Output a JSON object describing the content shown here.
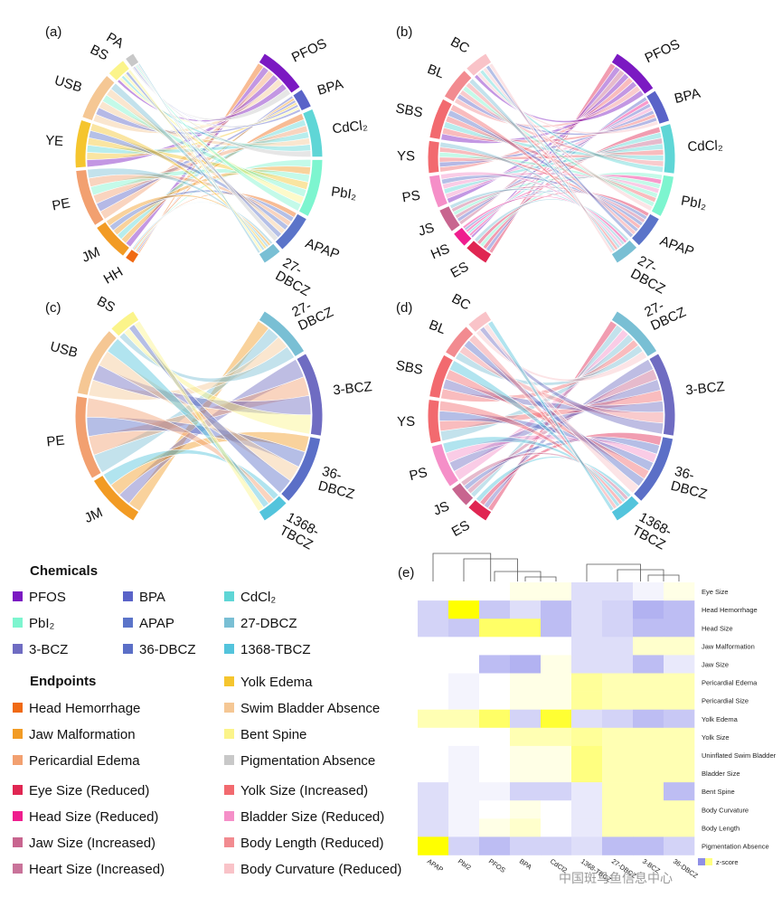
{
  "colors": {
    "PFOS": "#7b19c2",
    "BPA": "#5a63c8",
    "CdCl2": "#5fd6d6",
    "PbI2": "#7df5cf",
    "APAP": "#5b74c9",
    "27-DBCZ": "#79bfd4",
    "3-BCZ": "#6f6cc2",
    "36-DBCZ": "#5b6fc7",
    "1368-TBCZ": "#53c4dc",
    "HH": "#f06a14",
    "JM": "#f29b24",
    "PE": "#f2a070",
    "YE": "#f5c52e",
    "USB": "#f5c794",
    "BS": "#fbf48a",
    "PA": "#c8c8c8",
    "ES": "#e02652",
    "HS": "#ef1e8e",
    "JS": "#c8658f",
    "HtS": "#c9739a",
    "YS": "#f26a6f",
    "PS": "#f58fc8",
    "BL": "#f28b90",
    "BC": "#f9c3c8",
    "SBS": "#f26a6f",
    "YSsmall": "#f49ac8"
  },
  "chart_data": [
    {
      "type": "chord",
      "panel": "(a)",
      "left": [
        {
          "label": "PA",
          "key": "PA",
          "weight": 1
        },
        {
          "label": "BS",
          "key": "BS",
          "weight": 2
        },
        {
          "label": "USB",
          "key": "USB",
          "weight": 5
        },
        {
          "label": "YE",
          "key": "YE",
          "weight": 5
        },
        {
          "label": "PE",
          "key": "PE",
          "weight": 6
        },
        {
          "label": "JM",
          "key": "JM",
          "weight": 4
        },
        {
          "label": "HH",
          "key": "HH",
          "weight": 1
        }
      ],
      "right": [
        {
          "label": "PFOS",
          "key": "PFOS",
          "weight": 5
        },
        {
          "label": "BPA",
          "key": "BPA",
          "weight": 2
        },
        {
          "label": "CdCl₂",
          "key": "CdCl2",
          "weight": 5
        },
        {
          "label": "PbI₂",
          "key": "PbI2",
          "weight": 6
        },
        {
          "label": "APAP",
          "key": "APAP",
          "weight": 4
        },
        {
          "label": "27-DBCZ",
          "key": "27-DBCZ",
          "weight": 2
        }
      ]
    },
    {
      "type": "chord",
      "panel": "(b)",
      "left": [
        {
          "label": "BC",
          "key": "BC",
          "weight": 3
        },
        {
          "label": "BL",
          "key": "BL",
          "weight": 4
        },
        {
          "label": "SBS",
          "key": "SBS",
          "weight": 5
        },
        {
          "label": "YS",
          "key": "YS",
          "weight": 4
        },
        {
          "label": "PS",
          "key": "PS",
          "weight": 4
        },
        {
          "label": "JS",
          "key": "JS",
          "weight": 3
        },
        {
          "label": "HS",
          "key": "HS",
          "weight": 2
        },
        {
          "label": "ES",
          "key": "ES",
          "weight": 3
        }
      ],
      "right": [
        {
          "label": "PFOS",
          "key": "PFOS",
          "weight": 6
        },
        {
          "label": "BPA",
          "key": "BPA",
          "weight": 4
        },
        {
          "label": "CdCl₂",
          "key": "CdCl2",
          "weight": 6
        },
        {
          "label": "PbI₂",
          "key": "PbI2",
          "weight": 5
        },
        {
          "label": "APAP",
          "key": "APAP",
          "weight": 4
        },
        {
          "label": "27-DBCZ",
          "key": "27-DBCZ",
          "weight": 3
        }
      ]
    },
    {
      "type": "chord",
      "panel": "(c)",
      "left": [
        {
          "label": "BS",
          "key": "BS",
          "weight": 2
        },
        {
          "label": "USB",
          "key": "USB",
          "weight": 5
        },
        {
          "label": "PE",
          "key": "PE",
          "weight": 6
        },
        {
          "label": "JM",
          "key": "JM",
          "weight": 4
        }
      ],
      "right": [
        {
          "label": "27-DBCZ",
          "key": "27-DBCZ",
          "weight": 4
        },
        {
          "label": "3-BCZ",
          "key": "3-BCZ",
          "weight": 6
        },
        {
          "label": "36-DBCZ",
          "key": "36-DBCZ",
          "weight": 5
        },
        {
          "label": "1368-TBCZ",
          "key": "1368-TBCZ",
          "weight": 2
        }
      ]
    },
    {
      "type": "chord",
      "panel": "(d)",
      "left": [
        {
          "label": "BC",
          "key": "BC",
          "weight": 2
        },
        {
          "label": "BL",
          "key": "BL",
          "weight": 3
        },
        {
          "label": "SBS",
          "key": "SBS",
          "weight": 4
        },
        {
          "label": "YS",
          "key": "YS",
          "weight": 4
        },
        {
          "label": "PS",
          "key": "PS",
          "weight": 4
        },
        {
          "label": "JS",
          "key": "JS",
          "weight": 2
        },
        {
          "label": "ES",
          "key": "ES",
          "weight": 2
        }
      ],
      "right": [
        {
          "label": "27-DBCZ",
          "key": "27-DBCZ",
          "weight": 4
        },
        {
          "label": "3-BCZ",
          "key": "3-BCZ",
          "weight": 6
        },
        {
          "label": "36-DBCZ",
          "key": "36-DBCZ",
          "weight": 5
        },
        {
          "label": "1368-TBCZ",
          "key": "1368-TBCZ",
          "weight": 2
        }
      ]
    },
    {
      "type": "heatmap",
      "panel": "(e)",
      "columns": [
        "APAP",
        "PbI2",
        "PFOS",
        "BPA",
        "CdCl2",
        "1368-TBCZ",
        "27-DBCZ",
        "3-BCZ",
        "36-DBCZ"
      ],
      "rows": [
        "Eye Size",
        "Head Hemorrhage",
        "Head Size",
        "Jaw Malformation",
        "Jaw Size",
        "Pericardial Edema",
        "Pericardial Size",
        "Yolk Edema",
        "Yolk Size",
        "Uninflated Swim Bladder",
        "Bladder Size",
        "Bent Spine",
        "Body Curvature",
        "Body Length",
        "Pigmentation Absence"
      ],
      "values": [
        [
          0.0,
          0.0,
          0.0,
          0.1,
          0.1,
          -0.3,
          -0.3,
          -0.1,
          0.1
        ],
        [
          -0.4,
          1.0,
          -0.5,
          -0.3,
          -0.6,
          -0.3,
          -0.4,
          -0.7,
          -0.6
        ],
        [
          -0.4,
          -0.5,
          0.6,
          0.6,
          -0.6,
          -0.3,
          -0.4,
          -0.6,
          -0.6
        ],
        [
          0.0,
          0.0,
          0.0,
          0.0,
          0.0,
          -0.3,
          -0.3,
          0.2,
          0.2
        ],
        [
          0.0,
          0.0,
          -0.6,
          -0.7,
          0.1,
          -0.3,
          -0.3,
          -0.6,
          -0.2
        ],
        [
          0.0,
          -0.1,
          0.0,
          0.1,
          0.1,
          0.4,
          0.3,
          0.3,
          0.3
        ],
        [
          0.0,
          -0.1,
          0.0,
          0.1,
          0.1,
          0.4,
          0.3,
          0.3,
          0.3
        ],
        [
          0.3,
          0.3,
          0.6,
          -0.4,
          0.8,
          -0.3,
          -0.4,
          -0.6,
          -0.5
        ],
        [
          0.0,
          0.0,
          0.0,
          0.3,
          0.3,
          0.4,
          0.3,
          0.3,
          0.3
        ],
        [
          0.0,
          -0.1,
          0.0,
          0.1,
          0.1,
          0.5,
          0.3,
          0.3,
          0.3
        ],
        [
          0.0,
          -0.1,
          0.0,
          0.1,
          0.1,
          0.5,
          0.3,
          0.3,
          0.3
        ],
        [
          -0.3,
          -0.1,
          -0.1,
          -0.4,
          -0.4,
          -0.2,
          0.3,
          0.3,
          -0.6
        ],
        [
          -0.3,
          -0.1,
          0.0,
          0.1,
          0.0,
          -0.2,
          0.3,
          0.3,
          0.3
        ],
        [
          -0.3,
          -0.1,
          0.1,
          0.2,
          0.0,
          -0.2,
          0.3,
          0.3,
          0.3
        ],
        [
          1.0,
          -0.4,
          -0.6,
          -0.4,
          -0.4,
          -0.3,
          -0.6,
          -0.6,
          -0.4
        ]
      ],
      "colorbar_label": "z-score"
    }
  ],
  "panels": {
    "a": "(a)",
    "b": "(b)",
    "c": "(c)",
    "d": "(d)",
    "e": "(e)"
  },
  "legend": {
    "chemicals_title": "Chemicals",
    "chemicals": [
      {
        "label": "PFOS",
        "color": "#7b19c2"
      },
      {
        "label": "BPA",
        "color": "#5a63c8"
      },
      {
        "label": "CdCl₂",
        "color": "#5fd6d6"
      },
      {
        "label": "PbI₂",
        "color": "#7df5cf"
      },
      {
        "label": "APAP",
        "color": "#5b74c9"
      },
      {
        "label": "27-DBCZ",
        "color": "#79bfd4"
      },
      {
        "label": "3-BCZ",
        "color": "#6f6cc2"
      },
      {
        "label": "36-DBCZ",
        "color": "#5b6fc7"
      },
      {
        "label": "1368-TBCZ",
        "color": "#53c4dc"
      }
    ],
    "endpoints_title": "Endpoints",
    "endpoints_left": [
      {
        "label": "Head Hemorrhage",
        "color": "#f06a14"
      },
      {
        "label": "Jaw Malformation",
        "color": "#f29b24"
      },
      {
        "label": "Pericardial Edema",
        "color": "#f2a070"
      },
      {
        "label": "Eye Size (Reduced)",
        "color": "#e02652"
      },
      {
        "label": "Head Size (Reduced)",
        "color": "#ef1e8e"
      },
      {
        "label": "Jaw Size (Increased)",
        "color": "#c8658f"
      },
      {
        "label": "Heart Size (Increased)",
        "color": "#c9739a"
      }
    ],
    "endpoints_right": [
      {
        "label": "Yolk Edema",
        "color": "#f5c52e"
      },
      {
        "label": "Swim Bladder Absence",
        "color": "#f5c794"
      },
      {
        "label": "Bent Spine",
        "color": "#fbf48a"
      },
      {
        "label": "Pigmentation Absence",
        "color": "#c8c8c8"
      },
      {
        "label": "Yolk Size (Increased)",
        "color": "#f26a6f"
      },
      {
        "label": "Bladder Size (Reduced)",
        "color": "#f58fc8"
      },
      {
        "label": "Body Length (Reduced)",
        "color": "#f28b90"
      },
      {
        "label": "Body Curvature (Reduced)",
        "color": "#f9c3c8"
      }
    ]
  },
  "watermark": "中国斑马鱼信息中心"
}
